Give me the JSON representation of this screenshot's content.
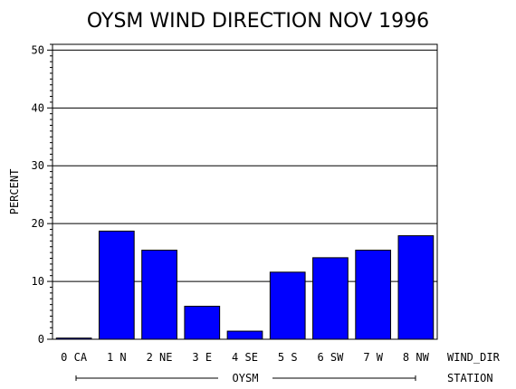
{
  "chart_data": {
    "type": "bar",
    "title": "OYSM WIND DIRECTION NOV 1996",
    "ylabel": "PERCENT",
    "xlabel": "WIND_DIR",
    "group_label": "STATION",
    "group_name": "OYSM",
    "categories": [
      "0 CA",
      "1 N",
      "2 NE",
      "3 E",
      "4 SE",
      "5 S",
      "6 SW",
      "7 W",
      "8 NW"
    ],
    "values": [
      0.2,
      18.7,
      15.4,
      5.7,
      1.4,
      11.6,
      14.1,
      15.4,
      17.9
    ],
    "ylim": [
      0,
      51
    ],
    "yticks": [
      0,
      10,
      20,
      30,
      40,
      50
    ],
    "grid": "horizontal",
    "bar_color": "#0000ff"
  }
}
